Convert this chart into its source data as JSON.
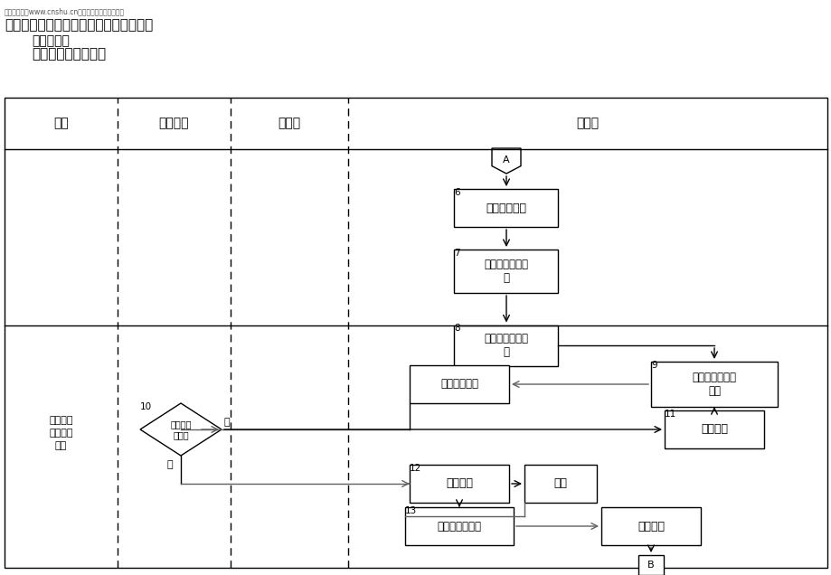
{
  "watermark": "精品资料网（www.cnshu.cn）专业提供人管培训资料",
  "header_line1": "流程名称：固定资产管理流程（续上页）",
  "header_line2": "流程编号：",
  "header_line3": "流程拥有者：财务部",
  "col_headers": [
    "时间",
    "财务副总",
    "储运部",
    "财务部"
  ],
  "background": "#ffffff"
}
